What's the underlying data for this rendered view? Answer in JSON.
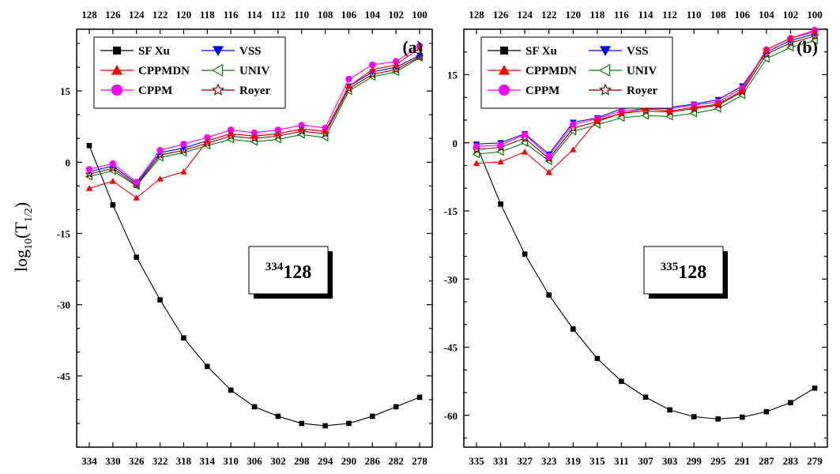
{
  "ylabel": {
    "prefix": "log",
    "base": "10",
    "arg": "(T",
    "sub": "1/2",
    "close": ")"
  },
  "colors": {
    "SF Xu": "#000000",
    "CPPMDN": "#ff0000",
    "CPPM": "#ff00ff",
    "VSS": "#0000ff",
    "UNIV": "#008000",
    "Royer": "#800000"
  },
  "legend_entries": [
    {
      "name": "SF Xu",
      "marker": "square"
    },
    {
      "name": "VSS",
      "marker": "triangle-down"
    },
    {
      "name": "CPPMDN",
      "marker": "triangle-up"
    },
    {
      "name": "UNIV",
      "marker": "triangle-left-open"
    },
    {
      "name": "CPPM",
      "marker": "circle"
    },
    {
      "name": "Royer",
      "marker": "star-open"
    }
  ],
  "chart_data": [
    {
      "type": "line",
      "panel_label": "(a)",
      "nucleus": {
        "mass": "334",
        "z": "128"
      },
      "x": [
        334,
        330,
        326,
        322,
        318,
        314,
        310,
        306,
        302,
        298,
        294,
        290,
        286,
        282,
        278
      ],
      "x_top": [
        128,
        126,
        124,
        122,
        120,
        118,
        116,
        114,
        112,
        110,
        108,
        106,
        104,
        102,
        100
      ],
      "ylim": [
        -60,
        28
      ],
      "yticks": [
        -45,
        -30,
        -15,
        0,
        15
      ],
      "grid": false,
      "legend_position": "top-left",
      "series": [
        {
          "name": "SF Xu",
          "values": [
            3.5,
            -9.0,
            -20.0,
            -29.0,
            -37.0,
            -43.0,
            -48.0,
            -51.5,
            -53.5,
            -55.0,
            -55.5,
            -55.0,
            -53.5,
            -51.5,
            -49.5
          ]
        },
        {
          "name": "VSS",
          "values": [
            -2.0,
            -0.8,
            -4.5,
            2.0,
            3.0,
            4.5,
            6.0,
            5.5,
            6.0,
            7.0,
            6.5,
            16.0,
            19.0,
            20.0,
            22.5
          ]
        },
        {
          "name": "CPPMDN",
          "values": [
            -5.5,
            -4.0,
            -7.5,
            -3.5,
            -2.0,
            4.5,
            6.0,
            5.5,
            6.0,
            7.0,
            6.5,
            16.0,
            19.5,
            20.5,
            24.0
          ]
        },
        {
          "name": "UNIV",
          "values": [
            -3.0,
            -1.8,
            -5.0,
            1.0,
            2.0,
            3.5,
            4.8,
            4.3,
            4.8,
            5.8,
            5.2,
            15.0,
            18.0,
            19.0,
            22.0
          ]
        },
        {
          "name": "CPPM",
          "values": [
            -1.5,
            -0.3,
            -4.2,
            2.5,
            3.8,
            5.2,
            6.8,
            6.2,
            6.8,
            7.8,
            7.2,
            17.5,
            20.5,
            21.2,
            24.5
          ]
        },
        {
          "name": "Royer",
          "values": [
            -2.5,
            -1.3,
            -4.8,
            1.5,
            2.5,
            4.0,
            5.5,
            5.0,
            5.5,
            6.5,
            6.0,
            15.5,
            18.5,
            19.5,
            22.2
          ]
        }
      ]
    },
    {
      "type": "line",
      "panel_label": "(b)",
      "nucleus": {
        "mass": "335",
        "z": "128"
      },
      "x": [
        335,
        331,
        327,
        323,
        319,
        315,
        311,
        307,
        303,
        299,
        295,
        291,
        287,
        283,
        279
      ],
      "x_top": [
        128,
        126,
        124,
        122,
        120,
        118,
        116,
        114,
        112,
        110,
        108,
        106,
        104,
        102,
        100
      ],
      "ylim": [
        -67,
        25
      ],
      "yticks": [
        -60,
        -45,
        -30,
        -15,
        0,
        15
      ],
      "grid": false,
      "legend_position": "top-left",
      "series": [
        {
          "name": "SF Xu",
          "values": [
            -0.5,
            -13.5,
            -24.5,
            -33.5,
            -41.0,
            -47.5,
            -52.5,
            -56.0,
            -58.8,
            -60.3,
            -60.8,
            -60.4,
            -59.2,
            -57.2,
            -54.0
          ]
        },
        {
          "name": "VSS",
          "values": [
            -0.3,
            0.0,
            2.0,
            -2.5,
            4.5,
            5.5,
            7.5,
            8.0,
            7.8,
            8.5,
            9.5,
            12.5,
            20.0,
            22.5,
            24.0
          ]
        },
        {
          "name": "CPPMDN",
          "values": [
            -4.5,
            -4.2,
            -2.0,
            -6.5,
            -1.5,
            5.0,
            6.5,
            7.5,
            7.0,
            7.8,
            8.5,
            11.5,
            20.5,
            23.0,
            24.5
          ]
        },
        {
          "name": "UNIV",
          "values": [
            -2.5,
            -2.0,
            0.0,
            -4.0,
            2.5,
            4.0,
            5.5,
            6.0,
            5.8,
            6.5,
            7.5,
            10.5,
            18.5,
            21.0,
            22.5
          ]
        },
        {
          "name": "CPPM",
          "values": [
            -0.8,
            -0.5,
            1.8,
            -3.0,
            4.0,
            5.3,
            7.0,
            7.5,
            7.5,
            8.3,
            9.0,
            12.0,
            20.5,
            23.0,
            24.8
          ]
        },
        {
          "name": "Royer",
          "values": [
            -1.5,
            -1.0,
            1.0,
            -3.5,
            3.2,
            4.7,
            6.5,
            7.0,
            6.8,
            7.5,
            8.3,
            11.2,
            19.5,
            22.0,
            23.5
          ]
        }
      ]
    }
  ]
}
